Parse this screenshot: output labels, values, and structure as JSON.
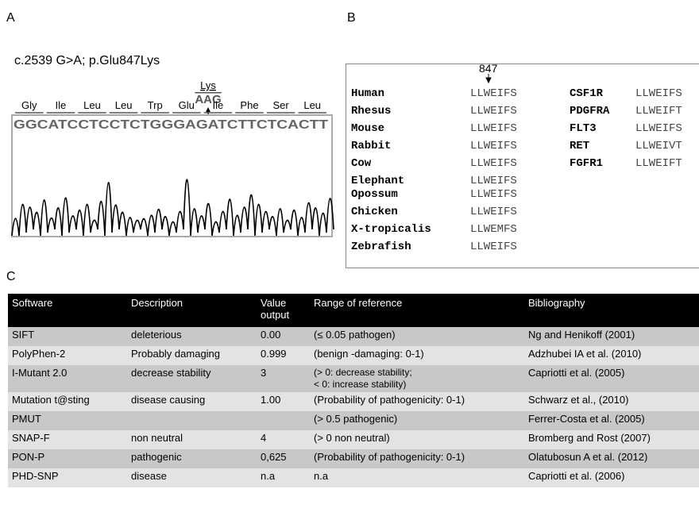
{
  "panels": {
    "a": "A",
    "b": "B",
    "c": "C"
  },
  "panel_a": {
    "title": "c.2539 G>A; p.Glu847Lys",
    "mutant_residue": "Lys",
    "mutant_codon": "AAG",
    "amino_acids": [
      "Gly",
      "Ile",
      "Leu",
      "Leu",
      "Trp",
      "Glu",
      "Ile",
      "Phe",
      "Ser",
      "Leu"
    ],
    "sequence": "GGCATCCTCCTCTGGGAGATCTTCTCACTT"
  },
  "panel_b": {
    "position": "847",
    "species": [
      {
        "name": "Human",
        "sequence": "LLWEIFS"
      },
      {
        "name": "Rhesus",
        "sequence": "LLWEIFS"
      },
      {
        "name": "Mouse",
        "sequence": "LLWEIFS"
      },
      {
        "name": "Rabbit",
        "sequence": "LLWEIFS"
      },
      {
        "name": "Cow",
        "sequence": "LLWEIFS"
      },
      {
        "name": "Elephant",
        "sequence": "LLWEIFS"
      },
      {
        "name": "Opossum",
        "sequence": "LLWEIFS"
      },
      {
        "name": "Chicken",
        "sequence": "LLWEIFS"
      },
      {
        "name": "X-tropicalis",
        "sequence": "LLWEMFS"
      },
      {
        "name": "Zebrafish",
        "sequence": "LLWEIFS"
      }
    ],
    "kinases": [
      {
        "name": "CSF1R",
        "sequence": "LLWEIFS"
      },
      {
        "name": "PDGFRA",
        "sequence": "LLWEIFT"
      },
      {
        "name": "FLT3",
        "sequence": "LLWEIFS"
      },
      {
        "name": "RET",
        "sequence": "LLWEIVT"
      },
      {
        "name": "FGFR1",
        "sequence": "LLWEIFT"
      }
    ]
  },
  "panel_c": {
    "header": [
      "Software",
      "Description",
      "Value output",
      "Range of reference",
      "Bibliography"
    ],
    "rows": [
      [
        "SIFT",
        "deleterious",
        "0.00",
        "(≤ 0.05 pathogen)",
        "Ng and Henikoff (2001)"
      ],
      [
        "PolyPhen-2",
        "Probably damaging",
        "0.999",
        "(benign -damaging: 0-1)",
        "Adzhubei IA et al. (2010)"
      ],
      [
        "I-Mutant 2.0",
        "decrease stability",
        "3",
        [
          "(> 0: decrease stability;",
          "< 0: increase stability)"
        ],
        "Capriotti et al. (2005)"
      ],
      [
        "Mutation t@sting",
        "disease causing",
        "1.00",
        "(Probability of pathogenicity: 0-1)",
        "Schwarz et al., (2010)"
      ],
      [
        "PMUT",
        null,
        null,
        "(> 0.5 pathogenic)",
        "Ferrer-Costa et al. (2005)"
      ],
      [
        "SNAP-F",
        "non neutral",
        "4",
        "(> 0 non neutral)",
        "Bromberg and Rost (2007)"
      ],
      [
        "PON-P",
        "pathogenic",
        "0,625",
        "(Probability of pathogenicity: 0-1)",
        "Olatubosun A et al. (2012)"
      ],
      [
        "PHD-SNP",
        "disease",
        "n.a",
        "n.a",
        "Capriotti et al. (2006)"
      ]
    ]
  }
}
